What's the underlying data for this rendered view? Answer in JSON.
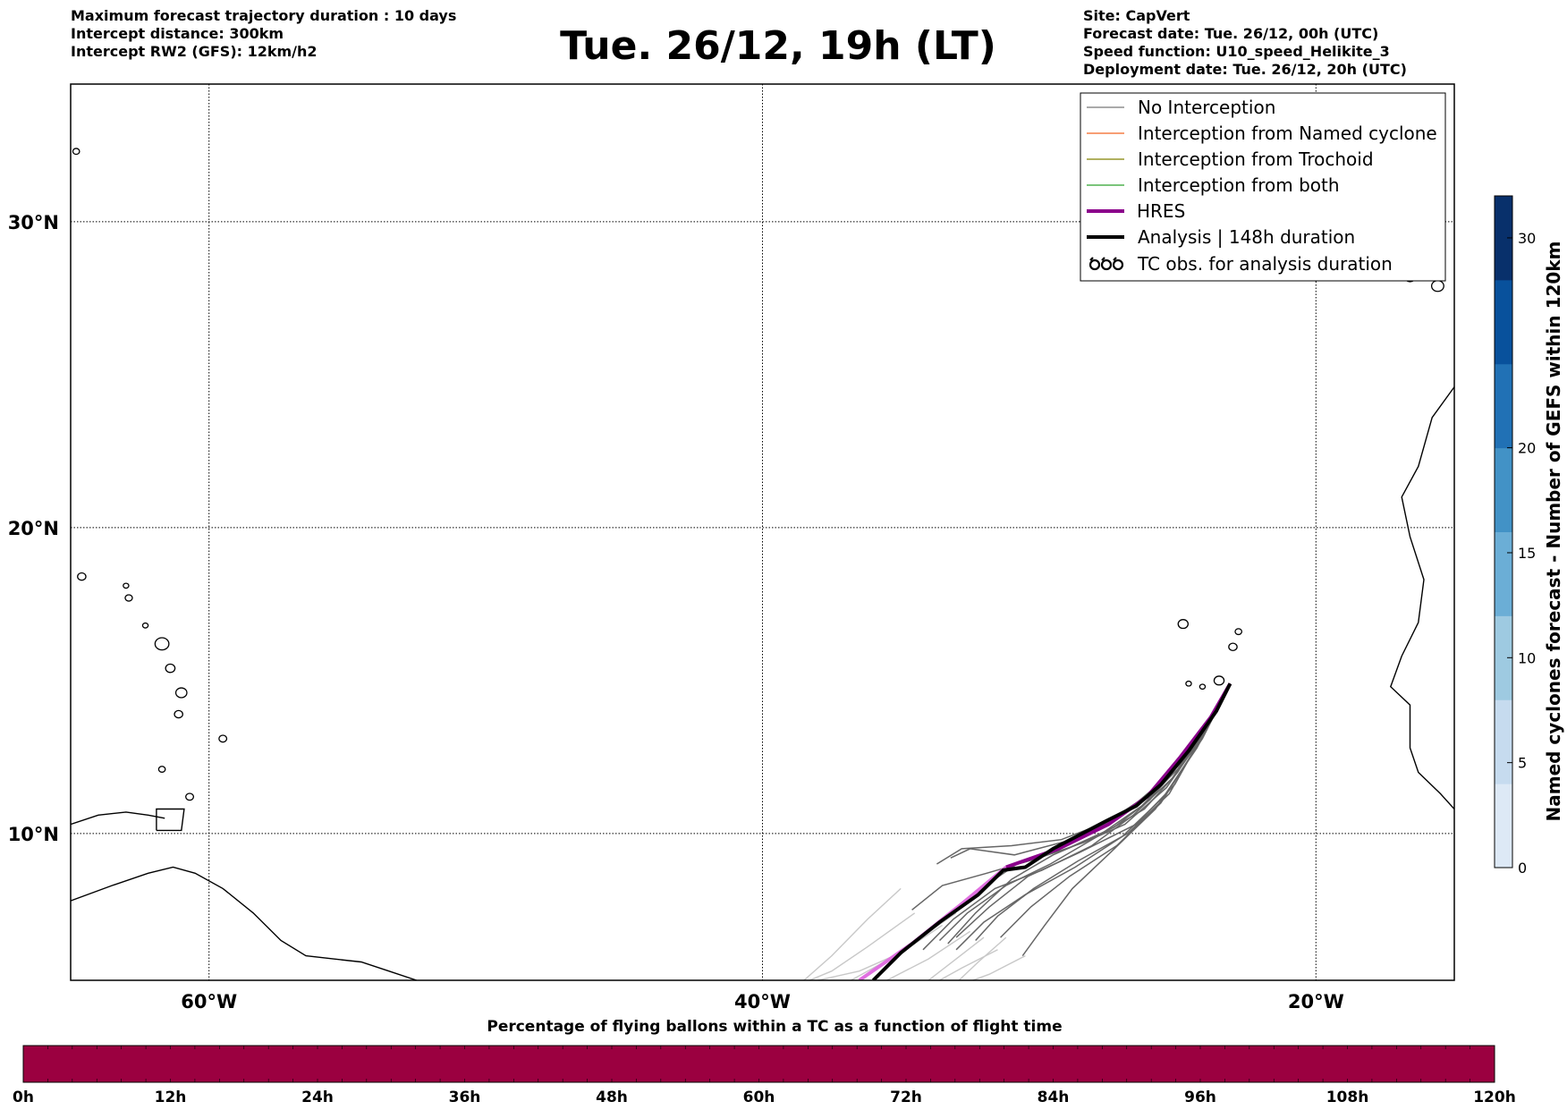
{
  "header": {
    "left_lines": [
      "Maximum forecast trajectory duration : 10 days",
      "Intercept distance: 300km",
      "Intercept RW2 (GFS):  12km/h2"
    ],
    "title": "Tue. 26/12, 19h (LT)",
    "right_lines": [
      "Site: CapVert",
      "Forecast date: Tue. 26/12, 00h (UTC)",
      "Speed function: U10_speed_Helikite_3",
      "Deployment date: Tue. 26/12, 20h (UTC)"
    ]
  },
  "map": {
    "lon_range": [
      -65,
      -15
    ],
    "lat_range": [
      5.2,
      34.5
    ],
    "lon_ticks": [
      {
        "value": -60,
        "label": "60°W"
      },
      {
        "value": -40,
        "label": "40°W"
      },
      {
        "value": -20,
        "label": "20°W"
      }
    ],
    "lat_ticks": [
      {
        "value": 30,
        "label": "30°N"
      },
      {
        "value": 20,
        "label": "20°N"
      },
      {
        "value": 10,
        "label": "10°N"
      }
    ],
    "grid": true
  },
  "legend": {
    "placement": "top-right",
    "items": [
      {
        "label": "No Interception",
        "color": "#777777",
        "style": "thin"
      },
      {
        "label": "Interception from Named cyclone",
        "color": "#f26522",
        "style": "thin"
      },
      {
        "label": "Interception from Trochoid",
        "color": "#808000",
        "style": "thin"
      },
      {
        "label": "Interception from both",
        "color": "#2ca02c",
        "style": "thin"
      },
      {
        "label": "HRES",
        "color": "#8b008b",
        "style": "thick"
      },
      {
        "label": "Analysis | 148h duration",
        "color": "#000000",
        "style": "thick"
      },
      {
        "label": "TC obs. for analysis duration",
        "color": "#000000",
        "style": "symbol"
      }
    ]
  },
  "colorbar": {
    "label": "Named cyclones forecast - Number of GEFS within 120km",
    "range": [
      0,
      32
    ],
    "ticks": [
      "0",
      "5",
      "10",
      "15",
      "20",
      "30"
    ],
    "colors": [
      "#dde9f6",
      "#c6dbef",
      "#9ecae1",
      "#6baed6",
      "#4292c6",
      "#2171b5",
      "#08519c",
      "#08306b"
    ]
  },
  "bottom_bar": {
    "title": "Percentage of flying ballons within a TC as a function of flight time",
    "color": "#9b0040",
    "ticks": [
      "0h",
      "12h",
      "24h",
      "36h",
      "48h",
      "60h",
      "72h",
      "84h",
      "96h",
      "108h",
      "120h"
    ]
  },
  "trajectories": {
    "origin": [
      -23.1,
      14.9
    ],
    "analysis": [
      [
        -23.1,
        14.9
      ],
      [
        -23.6,
        14.0
      ],
      [
        -24.6,
        12.7
      ],
      [
        -25.6,
        11.6
      ],
      [
        -26.5,
        10.9
      ],
      [
        -27.6,
        10.4
      ],
      [
        -29.5,
        9.5
      ],
      [
        -30.5,
        8.9
      ],
      [
        -31.3,
        8.8
      ],
      [
        -32.2,
        8.0
      ],
      [
        -33.6,
        7.1
      ],
      [
        -35.0,
        6.1
      ],
      [
        -36.0,
        5.2
      ]
    ],
    "hres": [
      [
        -23.1,
        14.9
      ],
      [
        -23.8,
        13.8
      ],
      [
        -24.9,
        12.5
      ],
      [
        -26.1,
        11.2
      ],
      [
        -27.5,
        10.3
      ],
      [
        -29.3,
        9.5
      ],
      [
        -31.2,
        8.9
      ],
      [
        -32.8,
        7.7
      ],
      [
        -34.6,
        6.4
      ],
      [
        -36.5,
        5.2
      ]
    ],
    "members_dark": [
      [
        [
          -23.1,
          14.9
        ],
        [
          -23.9,
          13.6
        ],
        [
          -25.0,
          12.0
        ],
        [
          -26.2,
          10.8
        ],
        [
          -27.7,
          10.0
        ],
        [
          -29.5,
          9.3
        ],
        [
          -31.0,
          8.5
        ],
        [
          -32.3,
          7.4
        ],
        [
          -33.3,
          6.4
        ]
      ],
      [
        [
          -23.1,
          14.9
        ],
        [
          -24.0,
          13.4
        ],
        [
          -25.1,
          11.6
        ],
        [
          -26.5,
          10.3
        ],
        [
          -28.5,
          9.4
        ],
        [
          -30.4,
          8.6
        ],
        [
          -31.8,
          7.6
        ],
        [
          -33.0,
          6.6
        ]
      ],
      [
        [
          -23.1,
          14.9
        ],
        [
          -23.8,
          13.8
        ],
        [
          -24.9,
          12.3
        ],
        [
          -26.0,
          11.1
        ],
        [
          -27.3,
          10.2
        ],
        [
          -29.0,
          9.5
        ],
        [
          -30.8,
          9.0
        ],
        [
          -32.1,
          8.2
        ],
        [
          -33.0,
          7.5
        ]
      ],
      [
        [
          -23.1,
          14.9
        ],
        [
          -24.1,
          13.2
        ],
        [
          -25.3,
          11.3
        ],
        [
          -26.8,
          10.0
        ],
        [
          -28.6,
          9.1
        ],
        [
          -30.2,
          8.2
        ],
        [
          -31.5,
          7.3
        ],
        [
          -32.3,
          6.5
        ]
      ],
      [
        [
          -23.1,
          14.9
        ],
        [
          -23.7,
          13.9
        ],
        [
          -24.7,
          12.6
        ],
        [
          -25.7,
          11.6
        ],
        [
          -27.0,
          10.6
        ],
        [
          -28.8,
          9.8
        ],
        [
          -30.9,
          9.3
        ],
        [
          -32.5,
          9.5
        ],
        [
          -33.2,
          9.2
        ]
      ],
      [
        [
          -23.1,
          14.9
        ],
        [
          -24.2,
          13.0
        ],
        [
          -25.6,
          11.0
        ],
        [
          -27.2,
          9.6
        ],
        [
          -28.9,
          8.6
        ],
        [
          -30.3,
          7.6
        ],
        [
          -31.4,
          6.6
        ]
      ],
      [
        [
          -23.1,
          14.9
        ],
        [
          -23.9,
          13.5
        ],
        [
          -25.2,
          11.8
        ],
        [
          -26.6,
          10.6
        ],
        [
          -28.1,
          9.6
        ],
        [
          -29.9,
          8.8
        ],
        [
          -31.6,
          8.2
        ],
        [
          -33.1,
          7.2
        ],
        [
          -34.2,
          6.2
        ]
      ],
      [
        [
          -23.1,
          14.9
        ],
        [
          -24.0,
          13.3
        ],
        [
          -25.4,
          11.5
        ],
        [
          -26.9,
          10.3
        ],
        [
          -28.4,
          9.7
        ],
        [
          -30.0,
          9.2
        ],
        [
          -31.9,
          8.7
        ],
        [
          -33.5,
          8.3
        ],
        [
          -34.6,
          7.5
        ]
      ],
      [
        [
          -23.1,
          14.9
        ],
        [
          -24.3,
          12.8
        ],
        [
          -25.8,
          10.8
        ],
        [
          -27.4,
          9.4
        ],
        [
          -28.8,
          8.2
        ],
        [
          -29.8,
          7.0
        ],
        [
          -30.6,
          6.0
        ]
      ],
      [
        [
          -23.1,
          14.9
        ],
        [
          -23.8,
          13.7
        ],
        [
          -24.8,
          12.4
        ],
        [
          -26.0,
          11.3
        ],
        [
          -27.5,
          10.4
        ],
        [
          -29.2,
          9.8
        ],
        [
          -31.0,
          9.6
        ],
        [
          -32.8,
          9.5
        ],
        [
          -33.7,
          9.0
        ]
      ],
      [
        [
          -23.1,
          14.9
        ],
        [
          -24.1,
          13.1
        ],
        [
          -25.5,
          11.2
        ],
        [
          -27.0,
          9.9
        ],
        [
          -28.7,
          8.9
        ],
        [
          -30.5,
          8.0
        ],
        [
          -32.0,
          7.1
        ],
        [
          -33.0,
          6.2
        ]
      ],
      [
        [
          -23.1,
          14.9
        ],
        [
          -23.9,
          13.6
        ],
        [
          -25.0,
          12.1
        ],
        [
          -26.3,
          10.9
        ],
        [
          -27.9,
          9.9
        ],
        [
          -29.6,
          9.0
        ],
        [
          -31.2,
          8.3
        ],
        [
          -32.6,
          7.4
        ],
        [
          -33.6,
          6.5
        ]
      ]
    ],
    "members_light": [
      [
        [
          -33.5,
          7.0
        ],
        [
          -35.0,
          6.1
        ],
        [
          -36.5,
          5.5
        ],
        [
          -38.0,
          5.2
        ]
      ],
      [
        [
          -32.5,
          6.8
        ],
        [
          -34.0,
          5.9
        ],
        [
          -35.5,
          5.2
        ]
      ],
      [
        [
          -31.5,
          6.2
        ],
        [
          -32.8,
          5.6
        ],
        [
          -33.6,
          5.2
        ]
      ],
      [
        [
          -34.5,
          7.4
        ],
        [
          -36.2,
          6.3
        ],
        [
          -37.5,
          5.5
        ],
        [
          -38.3,
          5.2
        ]
      ],
      [
        [
          -30.5,
          6.0
        ],
        [
          -31.8,
          5.4
        ],
        [
          -32.4,
          5.2
        ]
      ],
      [
        [
          -33.0,
          7.4
        ],
        [
          -34.3,
          6.6
        ],
        [
          -35.6,
          5.8
        ],
        [
          -36.8,
          5.2
        ]
      ],
      [
        [
          -32.0,
          6.6
        ],
        [
          -33.0,
          5.9
        ],
        [
          -34.0,
          5.2
        ]
      ],
      [
        [
          -35.0,
          8.2
        ],
        [
          -36.2,
          7.2
        ],
        [
          -37.5,
          6.0
        ],
        [
          -38.5,
          5.2
        ]
      ],
      [
        [
          -31.2,
          6.6
        ],
        [
          -32.2,
          5.8
        ],
        [
          -32.9,
          5.2
        ]
      ]
    ]
  },
  "coastlines": {
    "south_america": [
      [
        -65,
        7.8
      ],
      [
        -63.5,
        8.3
      ],
      [
        -62.2,
        8.7
      ],
      [
        -61.3,
        8.9
      ],
      [
        -60.5,
        8.7
      ],
      [
        -59.5,
        8.2
      ],
      [
        -58.4,
        7.4
      ],
      [
        -57.4,
        6.5
      ],
      [
        -56.5,
        6.0
      ],
      [
        -55.5,
        5.9
      ],
      [
        -54.5,
        5.8
      ],
      [
        -53.5,
        5.5
      ],
      [
        -52.5,
        5.2
      ]
    ],
    "venezuela_north": [
      [
        -65,
        10.3
      ],
      [
        -64.0,
        10.6
      ],
      [
        -63.0,
        10.7
      ],
      [
        -62.2,
        10.6
      ],
      [
        -61.6,
        10.5
      ]
    ],
    "trinidad": [
      [
        -61.9,
        10.1
      ],
      [
        -61.0,
        10.1
      ],
      [
        -60.9,
        10.8
      ],
      [
        -61.9,
        10.8
      ],
      [
        -61.9,
        10.1
      ]
    ],
    "africa": [
      [
        -15,
        24.6
      ],
      [
        -15.8,
        23.6
      ],
      [
        -16.3,
        22.0
      ],
      [
        -16.9,
        21.0
      ],
      [
        -16.6,
        19.7
      ],
      [
        -16.1,
        18.3
      ],
      [
        -16.3,
        16.9
      ],
      [
        -16.9,
        15.8
      ],
      [
        -17.3,
        14.8
      ],
      [
        -16.6,
        14.2
      ],
      [
        -16.6,
        12.8
      ],
      [
        -16.3,
        12.0
      ],
      [
        -15.5,
        11.3
      ],
      [
        -15.0,
        10.8
      ]
    ],
    "islands": [
      {
        "lon": -23.5,
        "lat": 15.0,
        "r": 0.18
      },
      {
        "lon": -23.0,
        "lat": 16.1,
        "r": 0.15
      },
      {
        "lon": -22.8,
        "lat": 16.6,
        "r": 0.12
      },
      {
        "lon": -24.8,
        "lat": 16.85,
        "r": 0.18
      },
      {
        "lon": -24.1,
        "lat": 14.8,
        "r": 0.1
      },
      {
        "lon": -24.6,
        "lat": 14.9,
        "r": 0.1
      },
      {
        "lon": -16.6,
        "lat": 28.2,
        "r": 0.2
      },
      {
        "lon": -15.6,
        "lat": 27.9,
        "r": 0.22
      },
      {
        "lon": -17.8,
        "lat": 28.6,
        "r": 0.15
      },
      {
        "lon": -14.0,
        "lat": 28.5,
        "r": 0.15
      },
      {
        "lon": -61.0,
        "lat": 14.6,
        "r": 0.2
      },
      {
        "lon": -61.4,
        "lat": 15.4,
        "r": 0.17
      },
      {
        "lon": -61.7,
        "lat": 16.2,
        "r": 0.25
      },
      {
        "lon": -61.1,
        "lat": 13.9,
        "r": 0.15
      },
      {
        "lon": -59.5,
        "lat": 13.1,
        "r": 0.14
      },
      {
        "lon": -61.7,
        "lat": 12.1,
        "r": 0.12
      },
      {
        "lon": -60.7,
        "lat": 11.2,
        "r": 0.14
      },
      {
        "lon": -64.6,
        "lat": 18.4,
        "r": 0.15
      },
      {
        "lon": -62.9,
        "lat": 17.7,
        "r": 0.13
      },
      {
        "lon": -62.3,
        "lat": 16.8,
        "r": 0.1
      },
      {
        "lon": -64.8,
        "lat": 32.3,
        "r": 0.12
      },
      {
        "lon": -63.0,
        "lat": 18.1,
        "r": 0.1
      }
    ]
  }
}
